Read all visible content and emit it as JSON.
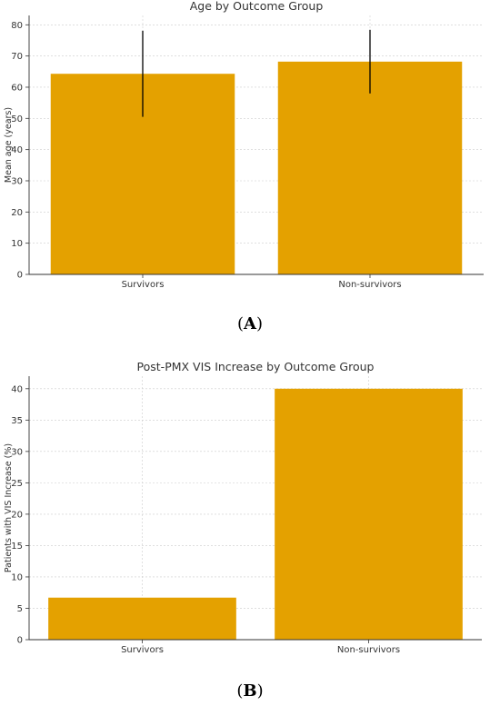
{
  "chart_data": [
    {
      "type": "bar",
      "title": "Age by Outcome Group",
      "xlabel": "",
      "ylabel": "Mean age (years)",
      "categories": [
        "Survivors",
        "Non-survivors"
      ],
      "values": [
        64.3,
        68.2
      ],
      "error": [
        13.8,
        10.2
      ],
      "ylim": [
        0,
        83
      ],
      "yticks": [
        0,
        10,
        20,
        30,
        40,
        50,
        60,
        70,
        80
      ],
      "grid": true,
      "color": "#E4A100",
      "panel_label": "A"
    },
    {
      "type": "bar",
      "title": "Post-PMX VIS Increase by Outcome Group",
      "xlabel": "",
      "ylabel": "Patients with VIS Increase (%)",
      "categories": [
        "Survivors",
        "Non-survivors"
      ],
      "values": [
        6.7,
        40.0
      ],
      "ylim": [
        0,
        42
      ],
      "yticks": [
        0,
        5,
        10,
        15,
        20,
        25,
        30,
        35,
        40
      ],
      "grid": true,
      "color": "#E4A100",
      "panel_label": "B"
    }
  ]
}
